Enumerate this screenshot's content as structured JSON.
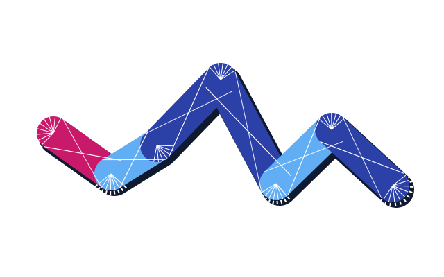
{
  "figure": {
    "background": "#ffffff",
    "outline_color": "#0f1a30",
    "mesh_line_color": "#ffffff",
    "segments": [
      {
        "name": "left-pink-segment",
        "color": "#c8196a"
      },
      {
        "name": "light-blue-segment-1",
        "color": "#62aef5"
      },
      {
        "name": "dark-blue-segment-1",
        "color": "#2c41a8"
      },
      {
        "name": "dark-blue-segment-2",
        "color": "#2c41a8"
      },
      {
        "name": "light-blue-segment-2",
        "color": "#62aef5"
      },
      {
        "name": "dark-blue-segment-3",
        "color": "#2c41a8"
      },
      {
        "name": "right-pink-segment",
        "color": "#c8196a"
      }
    ]
  }
}
